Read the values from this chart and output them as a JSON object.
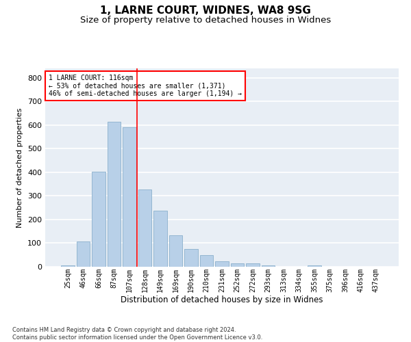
{
  "title1": "1, LARNE COURT, WIDNES, WA8 9SG",
  "title2": "Size of property relative to detached houses in Widnes",
  "xlabel": "Distribution of detached houses by size in Widnes",
  "ylabel": "Number of detached properties",
  "footnote": "Contains HM Land Registry data © Crown copyright and database right 2024.\nContains public sector information licensed under the Open Government Licence v3.0.",
  "bar_labels": [
    "25sqm",
    "46sqm",
    "66sqm",
    "87sqm",
    "107sqm",
    "128sqm",
    "149sqm",
    "169sqm",
    "190sqm",
    "210sqm",
    "231sqm",
    "252sqm",
    "272sqm",
    "293sqm",
    "313sqm",
    "334sqm",
    "355sqm",
    "375sqm",
    "396sqm",
    "416sqm",
    "437sqm"
  ],
  "bar_values": [
    7,
    107,
    403,
    615,
    592,
    327,
    237,
    133,
    75,
    48,
    23,
    14,
    14,
    5,
    0,
    0,
    7,
    0,
    0,
    0,
    0
  ],
  "bar_color": "#b8d0e8",
  "bar_edge_color": "#8ab0cc",
  "vline_color": "red",
  "annotation_title": "1 LARNE COURT: 116sqm",
  "annotation_line1": "← 53% of detached houses are smaller (1,371)",
  "annotation_line2": "46% of semi-detached houses are larger (1,194) →",
  "annotation_box_color": "white",
  "annotation_box_edgecolor": "red",
  "ylim": [
    0,
    840
  ],
  "yticks": [
    0,
    100,
    200,
    300,
    400,
    500,
    600,
    700,
    800
  ],
  "bg_color": "#e8eef5",
  "grid_color": "white",
  "title1_fontsize": 11,
  "title2_fontsize": 9.5,
  "ylabel_fontsize": 8,
  "xlabel_fontsize": 8.5,
  "footnote_fontsize": 6,
  "tick_fontsize": 7
}
